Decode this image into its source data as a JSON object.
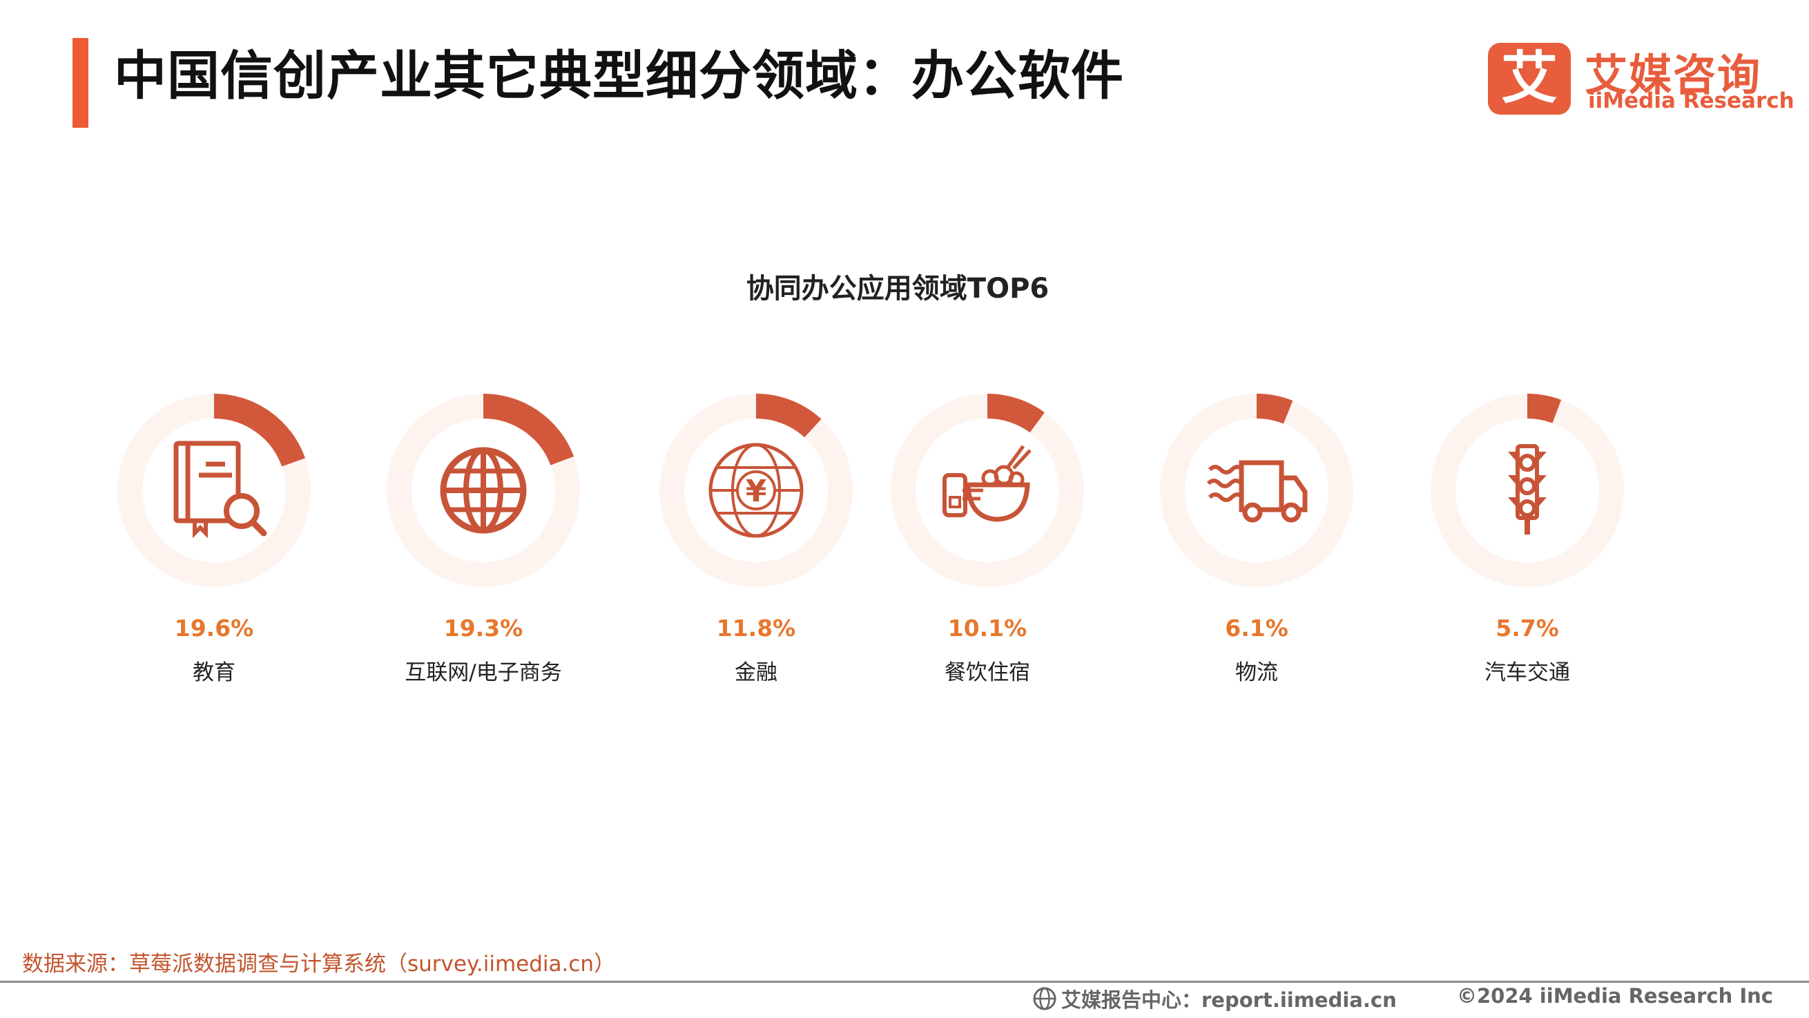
{
  "header": {
    "title": "中国信创产业其它典型细分领域：办公软件"
  },
  "logo": {
    "cn": "艾媒咨询",
    "en": "iiMedia Research",
    "mark": "艾"
  },
  "colors": {
    "accent": "#ee5a35",
    "donut_fill": "#d2583c",
    "donut_track": "#fdf4ef",
    "percent_text": "#e7772c",
    "icon": "#c85438"
  },
  "chart_data": {
    "type": "pie",
    "title": "协同办公应用领域TOP6",
    "unit": "%",
    "categories": [
      "教育",
      "互联网/电子商务",
      "金融",
      "餐饮住宿",
      "物流",
      "汽车交通"
    ],
    "values": [
      19.6,
      19.3,
      11.8,
      10.1,
      6.1,
      5.7
    ],
    "value_labels": [
      "19.6%",
      "19.3%",
      "11.8%",
      "10.1%",
      "6.1%",
      "5.7%"
    ],
    "icons": [
      "book-search-icon",
      "globe-icon",
      "yen-globe-icon",
      "food-bowl-icon",
      "delivery-truck-icon",
      "traffic-light-icon"
    ]
  },
  "footer": {
    "source": "数据来源：草莓派数据调查与计算系统（survey.iimedia.cn）",
    "report_center": "艾媒报告中心：report.iimedia.cn",
    "copyright": "©2024  iiMedia Research  Inc"
  }
}
